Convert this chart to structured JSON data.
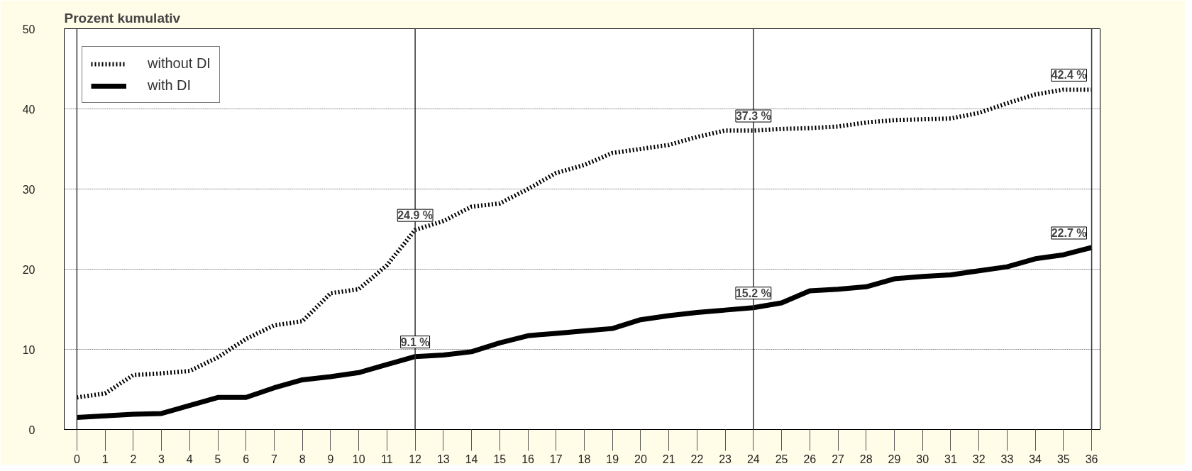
{
  "chart_data": {
    "type": "line",
    "title": "Prozent kumulativ",
    "x": [
      0,
      1,
      2,
      3,
      4,
      5,
      6,
      7,
      8,
      9,
      10,
      11,
      12,
      13,
      14,
      15,
      16,
      17,
      18,
      19,
      20,
      21,
      22,
      23,
      24,
      25,
      26,
      27,
      28,
      29,
      30,
      31,
      32,
      33,
      34,
      35,
      36
    ],
    "series": [
      {
        "name": "without DI",
        "color": "#000000",
        "line_style": "dotted",
        "values": [
          4.0,
          4.5,
          6.8,
          7.0,
          7.3,
          9.0,
          11.3,
          13.0,
          13.5,
          17.0,
          17.5,
          20.5,
          24.9,
          26.0,
          27.8,
          28.2,
          30.0,
          32.0,
          33.0,
          34.5,
          35.0,
          35.5,
          36.5,
          37.3,
          37.3,
          37.5,
          37.6,
          37.8,
          38.3,
          38.6,
          38.7,
          38.8,
          39.5,
          40.7,
          41.8,
          42.4,
          42.4
        ],
        "value_labels": [
          null,
          null,
          null,
          null,
          null,
          null,
          null,
          null,
          null,
          null,
          null,
          null,
          "24.9 %",
          null,
          null,
          null,
          null,
          null,
          null,
          null,
          null,
          null,
          null,
          null,
          "37.3 %",
          null,
          null,
          null,
          null,
          null,
          null,
          null,
          null,
          null,
          null,
          null,
          "42.4 %"
        ]
      },
      {
        "name": "with DI",
        "color": "#000000",
        "line_style": "solid",
        "values": [
          1.5,
          1.7,
          1.9,
          2.0,
          3.0,
          4.0,
          4.0,
          5.2,
          6.2,
          6.6,
          7.1,
          8.1,
          9.1,
          9.3,
          9.7,
          10.8,
          11.7,
          12.0,
          12.3,
          12.6,
          13.7,
          14.2,
          14.6,
          14.9,
          15.2,
          15.8,
          17.3,
          17.5,
          17.8,
          18.8,
          19.1,
          19.3,
          19.8,
          20.3,
          21.3,
          21.8,
          22.7
        ],
        "value_labels": [
          null,
          null,
          null,
          null,
          null,
          null,
          null,
          null,
          null,
          null,
          null,
          null,
          "9.1 %",
          null,
          null,
          null,
          null,
          null,
          null,
          null,
          null,
          null,
          null,
          null,
          "15.2 %",
          null,
          null,
          null,
          null,
          null,
          null,
          null,
          null,
          null,
          null,
          null,
          "22.7 %"
        ]
      }
    ],
    "xlim": [
      -0.45,
      36.3
    ],
    "ylim": [
      0,
      50
    ],
    "xticks": [
      0,
      1,
      2,
      3,
      4,
      5,
      6,
      7,
      8,
      9,
      10,
      11,
      12,
      13,
      14,
      15,
      16,
      17,
      18,
      19,
      20,
      21,
      22,
      23,
      24,
      25,
      26,
      27,
      28,
      29,
      30,
      31,
      32,
      33,
      34,
      35,
      36
    ],
    "yticks": [
      0,
      10,
      20,
      30,
      40,
      50
    ],
    "grid": "y",
    "legend": "top left",
    "marker": "none",
    "ref_lines": [
      {
        "axis": "x",
        "value": 0
      },
      {
        "axis": "x",
        "value": 12
      },
      {
        "axis": "x",
        "value": 24
      },
      {
        "axis": "x",
        "value": 36
      }
    ]
  }
}
